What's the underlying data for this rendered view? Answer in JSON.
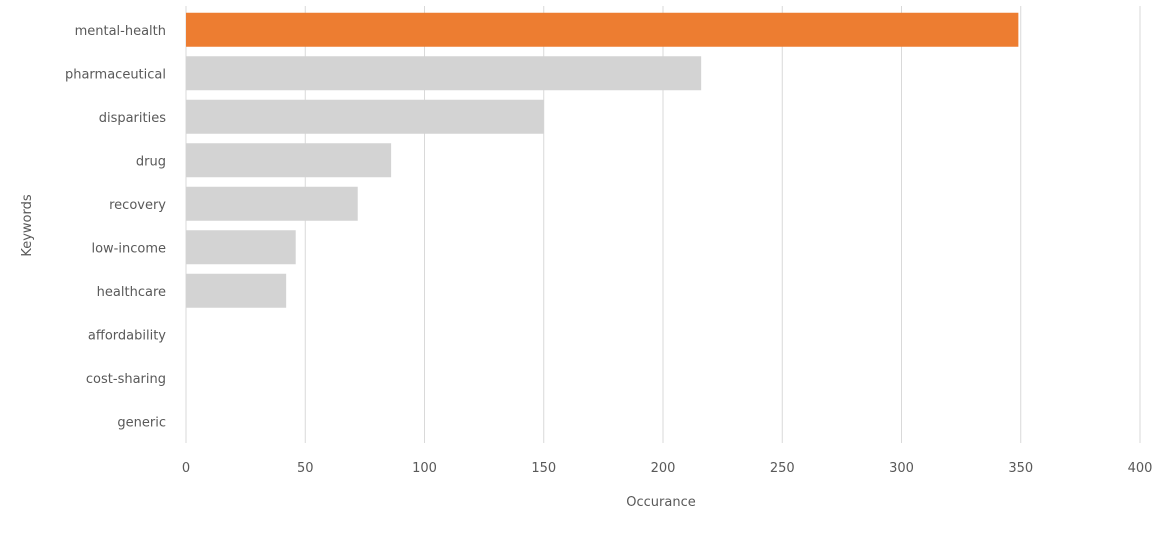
{
  "chart_data": {
    "type": "bar",
    "orientation": "horizontal",
    "categories": [
      "mental-health",
      "pharmaceutical",
      "disparities",
      "drug",
      "recovery",
      "low-income",
      "healthcare",
      "affordability",
      "cost-sharing",
      "generic"
    ],
    "values": [
      349,
      216,
      150,
      86,
      72,
      46,
      42,
      0,
      0,
      0
    ],
    "xlabel": "Occurance",
    "ylabel": "Keywords",
    "xlim": [
      0,
      400
    ],
    "xticks": [
      0,
      50,
      100,
      150,
      200,
      250,
      300,
      350,
      400
    ],
    "grid": "vertical",
    "colors": {
      "highlight": "#ed7d31",
      "default": "#d3d3d3",
      "grid": "#d9d9d9",
      "text": "#595959"
    },
    "highlight_category": "mental-health"
  }
}
